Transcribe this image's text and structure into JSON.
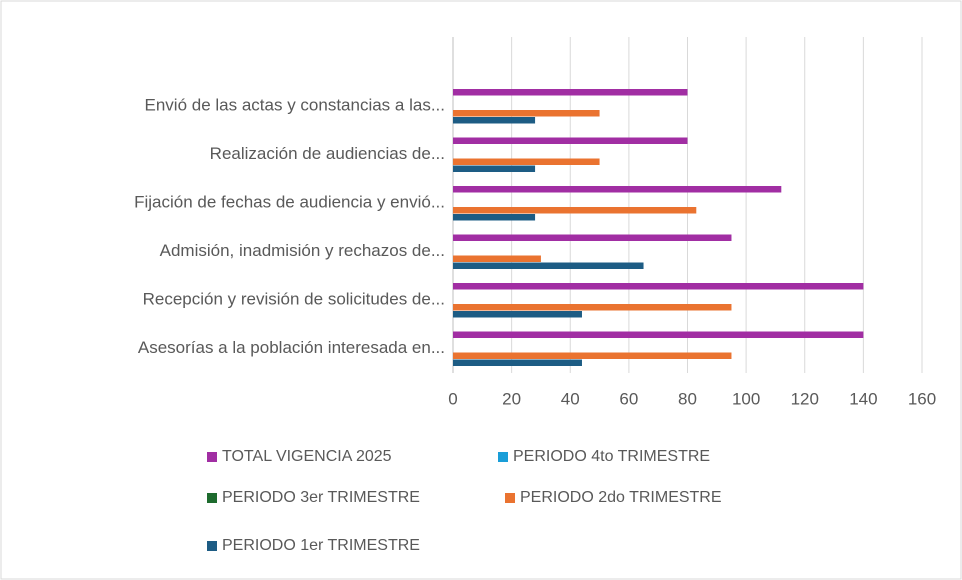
{
  "chart_data": {
    "type": "bar",
    "orientation": "horizontal",
    "categories": [
      "Envió de las actas y constancias a las...",
      "Realización de audiencias de...",
      "Fijación de fechas de audiencia y envió...",
      "Admisión, inadmisión y rechazos de...",
      "Recepción y revisión de solicitudes de...",
      "Asesorías a la población interesada en..."
    ],
    "series": [
      {
        "name": "TOTAL VIGENCIA 2025",
        "color": "#a12ea3",
        "values": [
          80,
          80,
          112,
          95,
          140,
          140
        ]
      },
      {
        "name": "PERIODO 4to TRIMESTRE",
        "color": "#1a9ed8",
        "values": [
          null,
          null,
          null,
          null,
          null,
          null
        ]
      },
      {
        "name": "PERIODO 3er TRIMESTRE",
        "color": "#1e6b2e",
        "values": [
          null,
          null,
          null,
          null,
          null,
          null
        ]
      },
      {
        "name": "PERIODO 2do TRIMESTRE",
        "color": "#ea7330",
        "values": [
          50,
          50,
          83,
          30,
          95,
          95
        ]
      },
      {
        "name": "PERIODO 1er TRIMESTRE",
        "color": "#1d5c84",
        "values": [
          28,
          28,
          28,
          65,
          44,
          44
        ]
      }
    ],
    "xlim": [
      0,
      160
    ],
    "xticks": [
      0,
      20,
      40,
      60,
      80,
      100,
      120,
      140,
      160
    ],
    "grid": true,
    "legend": "bottom"
  }
}
